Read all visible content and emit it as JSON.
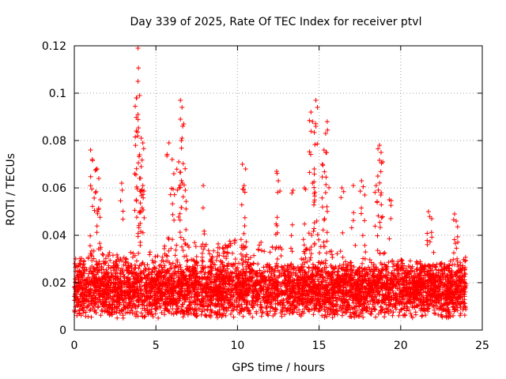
{
  "chart_data": {
    "type": "scatter",
    "title": "Day 339 of 2025, Rate Of TEC Index for receiver ptvl",
    "xlabel": "GPS time / hours",
    "ylabel": "ROTI / TECUs",
    "xlim": [
      0,
      25
    ],
    "ylim": [
      0,
      0.12
    ],
    "xticks": [
      0,
      5,
      10,
      15,
      20,
      25
    ],
    "xtick_labels": [
      "0",
      "5",
      "10",
      "15",
      "20",
      "25"
    ],
    "yticks": [
      0,
      0.02,
      0.04,
      0.06,
      0.08,
      0.1,
      0.12
    ],
    "ytick_labels": [
      "0",
      "0.02",
      "0.04",
      "0.06",
      "0.08",
      "0.1",
      "0.12"
    ],
    "grid": true,
    "marker": "+",
    "color": "#ff0000",
    "series": [
      {
        "name": "ROTI",
        "x_range": [
          0,
          24
        ],
        "bulk_band": [
          0.005,
          0.03
        ],
        "envelope_x": [
          0,
          1,
          2,
          3,
          4,
          5,
          6,
          7,
          8,
          9,
          10,
          11,
          12,
          13,
          14,
          15,
          16,
          17,
          18,
          19,
          20,
          21,
          22,
          23,
          24
        ],
        "envelope_y": [
          0.03,
          0.034,
          0.033,
          0.031,
          0.035,
          0.033,
          0.038,
          0.038,
          0.036,
          0.037,
          0.039,
          0.037,
          0.038,
          0.036,
          0.037,
          0.038,
          0.034,
          0.03,
          0.031,
          0.033,
          0.027,
          0.027,
          0.028,
          0.03,
          0.031
        ],
        "bursts": [
          {
            "x": 1.0,
            "y": 0.076
          },
          {
            "x": 1.1,
            "y": 0.072
          },
          {
            "x": 1.4,
            "y": 0.068
          },
          {
            "x": 1.5,
            "y": 0.064
          },
          {
            "x": 1.3,
            "y": 0.058
          },
          {
            "x": 1.6,
            "y": 0.055
          },
          {
            "x": 2.9,
            "y": 0.062
          },
          {
            "x": 3.9,
            "y": 0.119
          },
          {
            "x": 3.9,
            "y": 0.105
          },
          {
            "x": 4.0,
            "y": 0.099
          },
          {
            "x": 3.8,
            "y": 0.098
          },
          {
            "x": 3.9,
            "y": 0.091
          },
          {
            "x": 3.8,
            "y": 0.084
          },
          {
            "x": 4.1,
            "y": 0.081
          },
          {
            "x": 4.2,
            "y": 0.079
          },
          {
            "x": 4.0,
            "y": 0.074
          },
          {
            "x": 4.1,
            "y": 0.069
          },
          {
            "x": 3.7,
            "y": 0.066
          },
          {
            "x": 4.2,
            "y": 0.061
          },
          {
            "x": 5.8,
            "y": 0.079
          },
          {
            "x": 6.0,
            "y": 0.072
          },
          {
            "x": 6.1,
            "y": 0.066
          },
          {
            "x": 6.5,
            "y": 0.097
          },
          {
            "x": 6.6,
            "y": 0.094
          },
          {
            "x": 6.5,
            "y": 0.089
          },
          {
            "x": 6.7,
            "y": 0.087
          },
          {
            "x": 6.6,
            "y": 0.081
          },
          {
            "x": 6.4,
            "y": 0.071
          },
          {
            "x": 6.8,
            "y": 0.059
          },
          {
            "x": 7.9,
            "y": 0.061
          },
          {
            "x": 10.3,
            "y": 0.07
          },
          {
            "x": 10.5,
            "y": 0.068
          },
          {
            "x": 10.4,
            "y": 0.061
          },
          {
            "x": 12.4,
            "y": 0.067
          },
          {
            "x": 12.5,
            "y": 0.063
          },
          {
            "x": 13.4,
            "y": 0.059
          },
          {
            "x": 14.1,
            "y": 0.06
          },
          {
            "x": 14.5,
            "y": 0.092
          },
          {
            "x": 14.8,
            "y": 0.097
          },
          {
            "x": 14.9,
            "y": 0.094
          },
          {
            "x": 14.6,
            "y": 0.088
          },
          {
            "x": 14.8,
            "y": 0.086
          },
          {
            "x": 14.7,
            "y": 0.068
          },
          {
            "x": 14.6,
            "y": 0.062
          },
          {
            "x": 15.5,
            "y": 0.088
          },
          {
            "x": 15.4,
            "y": 0.083
          },
          {
            "x": 15.3,
            "y": 0.076
          },
          {
            "x": 15.2,
            "y": 0.07
          },
          {
            "x": 15.4,
            "y": 0.058
          },
          {
            "x": 16.4,
            "y": 0.06
          },
          {
            "x": 17.1,
            "y": 0.061
          },
          {
            "x": 17.6,
            "y": 0.063
          },
          {
            "x": 17.8,
            "y": 0.057
          },
          {
            "x": 18.7,
            "y": 0.078
          },
          {
            "x": 18.8,
            "y": 0.075
          },
          {
            "x": 18.9,
            "y": 0.071
          },
          {
            "x": 18.6,
            "y": 0.065
          },
          {
            "x": 18.5,
            "y": 0.061
          },
          {
            "x": 19.3,
            "y": 0.055
          },
          {
            "x": 21.7,
            "y": 0.05
          },
          {
            "x": 21.9,
            "y": 0.047
          },
          {
            "x": 23.3,
            "y": 0.049
          },
          {
            "x": 23.4,
            "y": 0.046
          }
        ]
      }
    ]
  }
}
